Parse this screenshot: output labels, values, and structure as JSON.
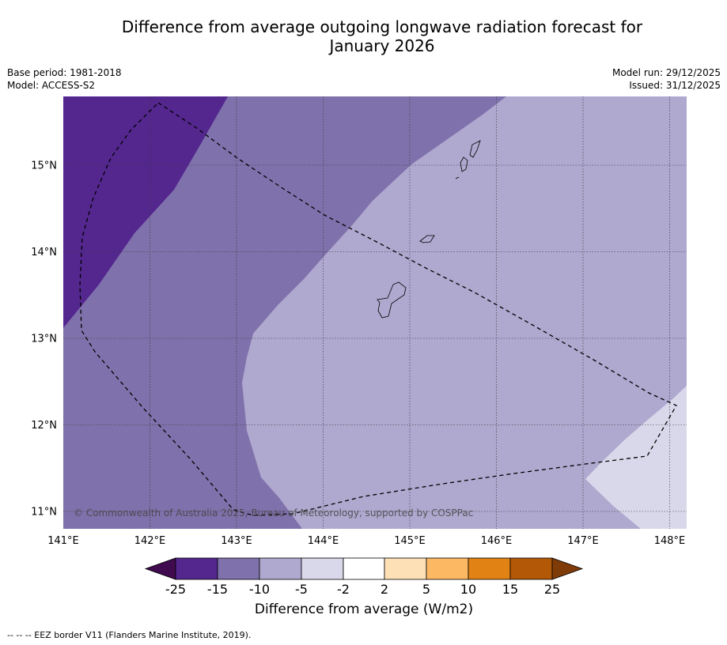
{
  "title_line1": "Difference from average outgoing longwave radiation forecast for",
  "title_line2": "January 2026",
  "meta": {
    "base_period": "Base period: 1981-2018",
    "model": "Model: ACCESS-S2",
    "model_run": "Model run: 29/12/2025",
    "issued": "Issued: 31/12/2025"
  },
  "map": {
    "lon_labels": [
      "141°E",
      "142°E",
      "143°E",
      "144°E",
      "145°E",
      "146°E",
      "147°E",
      "148°E"
    ],
    "lat_labels": [
      "15°N",
      "14°N",
      "13°N",
      "12°N",
      "11°N"
    ],
    "copyright": "© Commonwealth of Australia 2025, Bureau of Meteorology, supported by COSPPac",
    "colors": {
      "band_neg25_neg15": "#54278f",
      "band_neg15_neg10": "#7f71ab",
      "band_neg10_neg5": "#afa8cf",
      "band_neg5_neg2": "#d9d8ea"
    }
  },
  "colorbar": {
    "title": "Difference from average (W/m2)",
    "ticks": [
      "-25",
      "-15",
      "-10",
      "-5",
      "-2",
      "2",
      "5",
      "10",
      "15",
      "25"
    ],
    "colors": [
      "#3f0a4e",
      "#54278f",
      "#7f71ab",
      "#afa8cf",
      "#d9d8ea",
      "#ffffff",
      "#fde0b6",
      "#fdb863",
      "#e08214",
      "#b35806",
      "#7f3b08"
    ]
  },
  "footnote": "-- -- -- EEZ border V11 (Flanders Marine Institute, 2019)."
}
